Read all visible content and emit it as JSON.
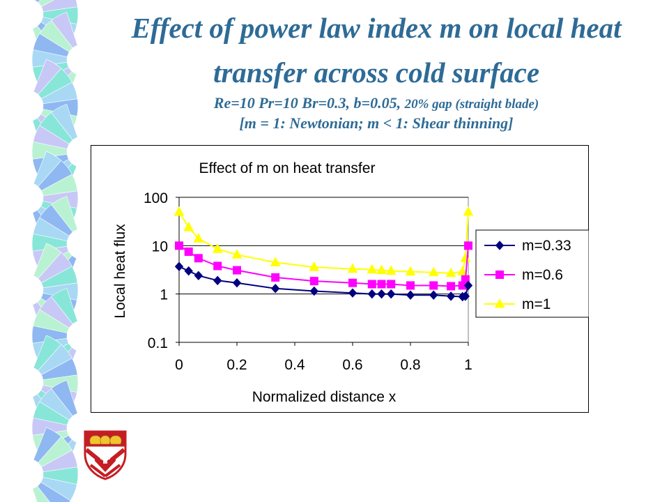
{
  "slide": {
    "title_line1_a": "Effect of power law index m on ",
    "title_line1_b": "local",
    "title_line1_c": " heat",
    "title_line2": "transfer across cold surface",
    "subtitle_line1_a": "Re=10 Pr=10 Br=0.3, b=0.05, ",
    "subtitle_line1_b": "20% gap (straight blade)",
    "subtitle_line2": "[m = 1: Newtonian; m < 1: Shear thinning]",
    "title_color": "#2E6B96"
  },
  "chart_data": {
    "type": "line",
    "title": "Effect of m on heat transfer",
    "xlabel": "Normalized distance x",
    "ylabel": "Local heat flux",
    "xlim": [
      0,
      1
    ],
    "ylim": [
      0.1,
      100
    ],
    "y_scale": "log",
    "x_ticks": [
      "0",
      "0.2",
      "0.4",
      "0.6",
      "0.8",
      "1"
    ],
    "y_ticks": [
      "0.1",
      "1",
      "10",
      "100"
    ],
    "grid": "horizontal",
    "legend_position": "right",
    "x": [
      0,
      0.033,
      0.067,
      0.133,
      0.2,
      0.333,
      0.467,
      0.6,
      0.667,
      0.7,
      0.733,
      0.8,
      0.88,
      0.94,
      0.98,
      0.99,
      1.0
    ],
    "series": [
      {
        "name": "m=0.33",
        "color": "#000080",
        "marker": "diamond",
        "values": [
          3.7,
          3.0,
          2.4,
          1.9,
          1.7,
          1.3,
          1.15,
          1.05,
          1.0,
          1.0,
          1.0,
          0.95,
          0.95,
          0.9,
          0.88,
          0.9,
          1.5
        ]
      },
      {
        "name": "m=0.6",
        "color": "#FF00FF",
        "marker": "square",
        "values": [
          10.0,
          7.5,
          5.5,
          3.8,
          3.1,
          2.2,
          1.85,
          1.7,
          1.6,
          1.6,
          1.6,
          1.5,
          1.5,
          1.45,
          1.5,
          2.0,
          10.0
        ]
      },
      {
        "name": "m=1",
        "color": "#FFFF00",
        "marker": "triangle",
        "values": [
          50.0,
          24.0,
          14.0,
          8.5,
          6.5,
          4.5,
          3.6,
          3.3,
          3.2,
          3.1,
          3.0,
          2.9,
          2.8,
          2.7,
          2.9,
          5.5,
          50.0
        ]
      }
    ]
  }
}
